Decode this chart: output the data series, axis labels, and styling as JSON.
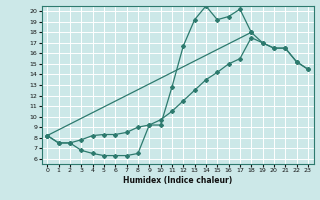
{
  "xlabel": "Humidex (Indice chaleur)",
  "bg_color": "#cce8e8",
  "grid_color": "#ffffff",
  "line_color": "#2d7a6e",
  "xlim": [
    -0.5,
    23.5
  ],
  "ylim": [
    5.5,
    20.5
  ],
  "xticks": [
    0,
    1,
    2,
    3,
    4,
    5,
    6,
    7,
    8,
    9,
    10,
    11,
    12,
    13,
    14,
    15,
    16,
    17,
    18,
    19,
    20,
    21,
    22,
    23
  ],
  "yticks": [
    6,
    7,
    8,
    9,
    10,
    11,
    12,
    13,
    14,
    15,
    16,
    17,
    18,
    19,
    20
  ],
  "line1_x": [
    0,
    1,
    2,
    3,
    4,
    5,
    6,
    7,
    8,
    9,
    10,
    11,
    12,
    13,
    14,
    15,
    16,
    17,
    18
  ],
  "line1_y": [
    8.2,
    7.5,
    7.5,
    6.8,
    6.5,
    6.3,
    6.3,
    6.3,
    6.5,
    9.2,
    9.2,
    12.8,
    16.7,
    19.2,
    20.5,
    19.2,
    19.5,
    20.2,
    18.0
  ],
  "line2_x": [
    0,
    1,
    2,
    3,
    4,
    5,
    6,
    7,
    8,
    9,
    10,
    11,
    12,
    13,
    14,
    15,
    16,
    17,
    18,
    19,
    20,
    21,
    22,
    23
  ],
  "line2_y": [
    8.2,
    7.5,
    7.5,
    7.8,
    8.2,
    8.3,
    8.3,
    8.5,
    9.0,
    9.2,
    9.7,
    10.5,
    11.5,
    12.5,
    13.5,
    14.2,
    15.0,
    15.5,
    17.5,
    17.0,
    16.5,
    16.5,
    15.2,
    14.5
  ],
  "line3_x": [
    0,
    18,
    19,
    20,
    21,
    22,
    23
  ],
  "line3_y": [
    8.2,
    18.0,
    17.0,
    16.5,
    16.5,
    15.2,
    14.5
  ]
}
